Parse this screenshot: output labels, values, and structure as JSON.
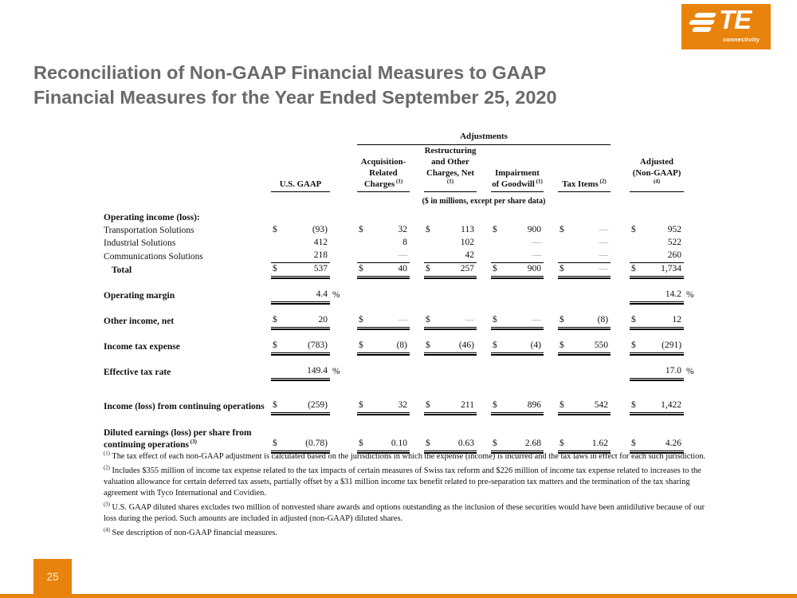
{
  "colors": {
    "orange": "#E8830D",
    "title_gray": "#6A6A6A",
    "dash_gray": "#9B9B9B"
  },
  "logo": {
    "wordmark": "TE",
    "subtitle": "connectivity"
  },
  "title": {
    "line1": "Reconciliation of Non-GAAP Financial Measures to GAAP",
    "line2": "Financial Measures for the Year Ended September 25, 2020"
  },
  "table": {
    "adjustments_label": "Adjustments",
    "units_note": "($ in millions, except per share data)",
    "columns": [
      {
        "top": [],
        "bottom": "U.S. GAAP",
        "sup": ""
      },
      {
        "top": [
          "Acquisition-",
          "Related"
        ],
        "bottom": "Charges",
        "sup": "(1)"
      },
      {
        "top": [
          "Restructuring",
          "and Other"
        ],
        "bottom": "Charges, Net",
        "sup": "(1)"
      },
      {
        "top": [
          "Impairment"
        ],
        "bottom": "of Goodwill",
        "sup": "(1)"
      },
      {
        "top": [],
        "bottom": "Tax Items",
        "sup": "(2)"
      },
      {
        "top": [
          "Adjusted"
        ],
        "bottom": "(Non-GAAP)",
        "sup": "(4)"
      }
    ],
    "rows": [
      {
        "label": "Operating income (loss):",
        "bold": true,
        "gap": 5,
        "cells": [
          null,
          null,
          null,
          null,
          null,
          null
        ]
      },
      {
        "label": "Transportation Solutions",
        "cells": [
          {
            "cur": "$",
            "val": "(93)"
          },
          {
            "cur": "$",
            "val": "32"
          },
          {
            "cur": "$",
            "val": "113"
          },
          {
            "cur": "$",
            "val": "900"
          },
          {
            "cur": "$",
            "val": "—",
            "dash": true
          },
          {
            "cur": "$",
            "val": "952"
          }
        ]
      },
      {
        "label": "Industrial Solutions",
        "cells": [
          {
            "val": "412"
          },
          {
            "val": "8"
          },
          {
            "val": "102"
          },
          {
            "val": "—",
            "dash": true
          },
          {
            "val": "—",
            "dash": true
          },
          {
            "val": "522"
          }
        ]
      },
      {
        "label": "Communications Solutions",
        "rule": "single",
        "cells": [
          {
            "val": "218"
          },
          {
            "val": "—",
            "dash": true
          },
          {
            "val": "42"
          },
          {
            "val": "—",
            "dash": true
          },
          {
            "val": "—",
            "dash": true
          },
          {
            "val": "260"
          }
        ]
      },
      {
        "label": "Total",
        "bold": true,
        "indent": true,
        "rule": "double",
        "cells": [
          {
            "cur": "$",
            "val": "537"
          },
          {
            "cur": "$",
            "val": "40"
          },
          {
            "cur": "$",
            "val": "257"
          },
          {
            "cur": "$",
            "val": "900"
          },
          {
            "cur": "$",
            "val": "—",
            "dash": true
          },
          {
            "cur": "$",
            "val": "1,734"
          }
        ]
      },
      {
        "label": "Operating margin",
        "bold": true,
        "rule": "double",
        "pct": true,
        "gap": 15,
        "cells": [
          {
            "val": "4.4"
          },
          null,
          null,
          null,
          null,
          {
            "val": "14.2"
          }
        ]
      },
      {
        "label": "Other income, net",
        "bold": true,
        "rule": "double",
        "gap": 15,
        "cells": [
          {
            "cur": "$",
            "val": "20"
          },
          {
            "cur": "$",
            "val": "—",
            "dash": true
          },
          {
            "cur": "$",
            "val": "—",
            "dash": true
          },
          {
            "cur": "$",
            "val": "—",
            "dash": true
          },
          {
            "cur": "$",
            "val": "(8)"
          },
          {
            "cur": "$",
            "val": "12"
          }
        ]
      },
      {
        "label": "Income tax expense",
        "bold": true,
        "rule": "double",
        "gap": 15,
        "cells": [
          {
            "cur": "$",
            "val": "(783)"
          },
          {
            "cur": "$",
            "val": "(8)"
          },
          {
            "cur": "$",
            "val": "(46)"
          },
          {
            "cur": "$",
            "val": "(4)"
          },
          {
            "cur": "$",
            "val": "550"
          },
          {
            "cur": "$",
            "val": "(291)"
          }
        ]
      },
      {
        "label": "Effective tax rate",
        "bold": true,
        "rule": "double",
        "pct": true,
        "gap": 15,
        "cells": [
          {
            "val": "149.4"
          },
          null,
          null,
          null,
          null,
          {
            "val": "17.0"
          }
        ]
      },
      {
        "label": "Income (loss) from continuing operations",
        "bold": true,
        "rule": "double",
        "gap": 26,
        "cells": [
          {
            "cur": "$",
            "val": "(259)"
          },
          {
            "cur": "$",
            "val": "32"
          },
          {
            "cur": "$",
            "val": "211"
          },
          {
            "cur": "$",
            "val": "896"
          },
          {
            "cur": "$",
            "val": "542"
          },
          {
            "cur": "$",
            "val": "1,422"
          }
        ]
      },
      {
        "label": "Diluted earnings (loss) per share from\ncontinuing operations",
        "label_sup": "(3)",
        "bold": true,
        "rule": "double",
        "gap": 18,
        "cells": [
          {
            "cur": "$",
            "val": "(0.78)"
          },
          {
            "cur": "$",
            "val": "0.10"
          },
          {
            "cur": "$",
            "val": "0.63"
          },
          {
            "cur": "$",
            "val": "2.68"
          },
          {
            "cur": "$",
            "val": "1.62"
          },
          {
            "cur": "$",
            "val": "4.26"
          }
        ]
      }
    ]
  },
  "footnotes": [
    {
      "sup": "(1)",
      "text": "The tax effect of each non-GAAP adjustment is calculated based on the jurisdictions in which the expense (income) is incurred and the tax laws in effect for each such jurisdiction."
    },
    {
      "sup": "(2)",
      "text": "Includes $355 million of income tax expense related to the tax impacts of certain measures of Swiss tax reform and $226 million of income tax expense related to increases to the valuation allowance for certain deferred tax assets, partially offset by a $31 million income tax benefit related to pre-separation tax matters and the termination of the tax sharing agreement with Tyco International and Covidien."
    },
    {
      "sup": "(3)",
      "text": "U.S. GAAP diluted shares excludes two million of nonvested share awards and options outstanding as the inclusion of these securities would have been antidilutive because of our loss during the period. Such amounts are included in adjusted (non-GAAP) diluted shares."
    },
    {
      "sup": "(4)",
      "text": "See description of non-GAAP financial measures."
    }
  ],
  "page_number": "25"
}
